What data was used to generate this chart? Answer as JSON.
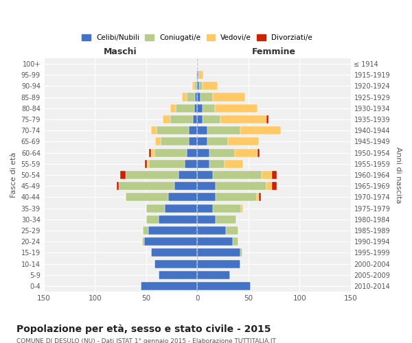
{
  "age_groups": [
    "100+",
    "95-99",
    "90-94",
    "85-89",
    "80-84",
    "75-79",
    "70-74",
    "65-69",
    "60-64",
    "55-59",
    "50-54",
    "45-49",
    "40-44",
    "35-39",
    "30-34",
    "25-29",
    "20-24",
    "15-19",
    "10-14",
    "5-9",
    "0-4"
  ],
  "birth_years": [
    "≤ 1914",
    "1915-1919",
    "1920-1924",
    "1925-1929",
    "1930-1934",
    "1935-1939",
    "1940-1944",
    "1945-1949",
    "1950-1954",
    "1955-1959",
    "1960-1964",
    "1965-1969",
    "1970-1974",
    "1975-1979",
    "1980-1984",
    "1985-1989",
    "1990-1994",
    "1995-1999",
    "2000-2004",
    "2005-2009",
    "2010-2014"
  ],
  "males": {
    "celibe": [
      0,
      1,
      1,
      2,
      3,
      4,
      8,
      8,
      10,
      12,
      18,
      22,
      28,
      32,
      38,
      48,
      52,
      45,
      42,
      38,
      55
    ],
    "coniugato": [
      0,
      0,
      2,
      8,
      18,
      22,
      32,
      28,
      32,
      35,
      52,
      55,
      42,
      18,
      12,
      5,
      2,
      0,
      0,
      0,
      0
    ],
    "vedovo": [
      0,
      0,
      2,
      5,
      5,
      8,
      5,
      5,
      3,
      2,
      0,
      0,
      0,
      0,
      0,
      0,
      0,
      0,
      0,
      0,
      0
    ],
    "divorziato": [
      0,
      0,
      0,
      0,
      0,
      0,
      0,
      0,
      2,
      2,
      5,
      2,
      0,
      0,
      0,
      0,
      0,
      0,
      0,
      0,
      0
    ]
  },
  "females": {
    "nubile": [
      0,
      1,
      2,
      3,
      5,
      5,
      10,
      10,
      12,
      12,
      15,
      18,
      18,
      15,
      18,
      28,
      35,
      42,
      42,
      32,
      52
    ],
    "coniugata": [
      0,
      0,
      3,
      12,
      12,
      18,
      32,
      20,
      25,
      15,
      48,
      50,
      40,
      28,
      20,
      12,
      5,
      2,
      0,
      0,
      0
    ],
    "vedova": [
      0,
      5,
      15,
      32,
      42,
      45,
      40,
      30,
      22,
      18,
      10,
      5,
      2,
      2,
      0,
      0,
      0,
      0,
      0,
      0,
      0
    ],
    "divorziata": [
      0,
      0,
      0,
      0,
      0,
      2,
      0,
      0,
      2,
      0,
      5,
      5,
      2,
      0,
      0,
      0,
      0,
      0,
      0,
      0,
      0
    ]
  },
  "color_celibe": "#4472c4",
  "color_coniugato": "#b8cc8a",
  "color_vedovo": "#ffc966",
  "color_divorziato": "#cc2200",
  "title": "Popolazione per età, sesso e stato civile - 2015",
  "subtitle": "COMUNE DI DESULO (NU) - Dati ISTAT 1° gennaio 2015 - Elaborazione TUTTITALIA.IT",
  "xlabel_left": "Maschi",
  "xlabel_right": "Femmine",
  "ylabel_left": "Fasce di età",
  "ylabel_right": "Anni di nascita",
  "xlim": 150,
  "legend_labels": [
    "Celibi/Nubili",
    "Coniugati/e",
    "Vedovi/e",
    "Divorziati/e"
  ],
  "bg_color": "#f0f0f0"
}
